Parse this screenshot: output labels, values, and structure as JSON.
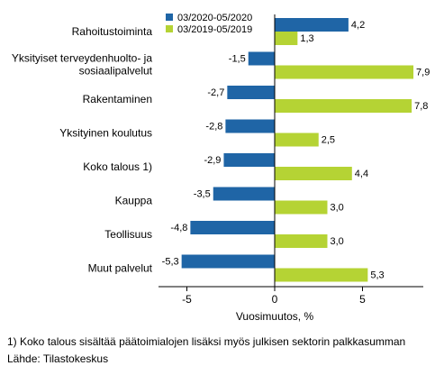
{
  "chart_data": {
    "type": "bar",
    "orientation": "horizontal",
    "categories": [
      "Rahoitustoiminta",
      "Yksityiset terveydenhuolto- ja sosiaalipalvelut",
      "Rakentaminen",
      "Yksityinen koulutus",
      "Koko talous 1)",
      "Kauppa",
      "Teollisuus",
      "Muut palvelut"
    ],
    "series": [
      {
        "name": "03/2020-05/2020",
        "color": "#1f65a6",
        "values": [
          4.2,
          -1.5,
          -2.7,
          -2.8,
          -2.9,
          -3.5,
          -4.8,
          -5.3
        ],
        "labels": [
          "4,2",
          "-1,5",
          "-2,7",
          "-2,8",
          "-2,9",
          "-3,5",
          "-4,8",
          "-5,3"
        ]
      },
      {
        "name": "03/2019-05/2019",
        "color": "#b5d334",
        "values": [
          1.3,
          7.9,
          7.8,
          2.5,
          4.4,
          3.0,
          3.0,
          5.3
        ],
        "labels": [
          "1,3",
          "7,9",
          "7,8",
          "2,5",
          "4,4",
          "3,0",
          "3,0",
          "5,3"
        ]
      }
    ],
    "xlabel": "Vuosimuutos, %",
    "xlim": [
      -7,
      9
    ],
    "xticks": [
      -5,
      0,
      5
    ],
    "xtick_labels": [
      "-5",
      "0",
      "5"
    ],
    "grid": false,
    "legend_position": "top"
  },
  "footnote": "1) Koko talous sisältää päätoimialojen lisäksi myös julkisen sektorin palkkasumman",
  "source": "Lähde: Tilastokeskus"
}
